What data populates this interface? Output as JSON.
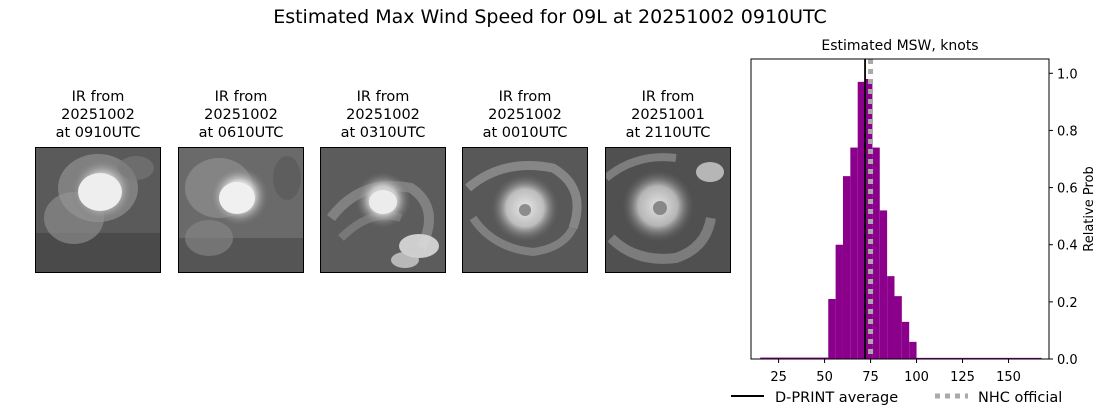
{
  "title": "Estimated Max Wind Speed for 09L at 20251002 0910UTC",
  "ir_panels": [
    {
      "line1": "IR from",
      "line2": "20251002",
      "line3": "at 0910UTC"
    },
    {
      "line1": "IR from",
      "line2": "20251002",
      "line3": "at 0610UTC"
    },
    {
      "line1": "IR from",
      "line2": "20251002",
      "line3": "at 0310UTC"
    },
    {
      "line1": "IR from",
      "line2": "20251002",
      "line3": "at 0010UTC"
    },
    {
      "line1": "IR from",
      "line2": "20251001",
      "line3": "at 2110UTC"
    }
  ],
  "chart_data": {
    "type": "bar",
    "title": "Estimated MSW, knots",
    "xlabel": "",
    "ylabel": "Relative Prob",
    "xlim": [
      10,
      172
    ],
    "ylim": [
      0,
      1.05
    ],
    "x_ticks": [
      25,
      50,
      75,
      100,
      125,
      150
    ],
    "y_ticks": [
      0.0,
      0.2,
      0.4,
      0.6,
      0.8,
      1.0
    ],
    "y_tick_labels": [
      "0.0",
      "0.2",
      "0.4",
      "0.6",
      "0.8",
      "1.0"
    ],
    "y_axis_side": "right",
    "bar_color": "#8b008b",
    "bins": [
      {
        "x0": 15,
        "x1": 52,
        "value": 0.005
      },
      {
        "x0": 52,
        "x1": 56,
        "value": 0.21
      },
      {
        "x0": 56,
        "x1": 60,
        "value": 0.4
      },
      {
        "x0": 60,
        "x1": 64,
        "value": 0.64
      },
      {
        "x0": 64,
        "x1": 68,
        "value": 0.74
      },
      {
        "x0": 68,
        "x1": 72,
        "value": 0.97
      },
      {
        "x0": 72,
        "x1": 76,
        "value": 0.98
      },
      {
        "x0": 76,
        "x1": 80,
        "value": 0.74
      },
      {
        "x0": 80,
        "x1": 84,
        "value": 0.52
      },
      {
        "x0": 84,
        "x1": 88,
        "value": 0.29
      },
      {
        "x0": 88,
        "x1": 92,
        "value": 0.22
      },
      {
        "x0": 92,
        "x1": 96,
        "value": 0.13
      },
      {
        "x0": 96,
        "x1": 100,
        "value": 0.06
      },
      {
        "x0": 100,
        "x1": 168,
        "value": 0.004
      }
    ],
    "dprint_average": 72,
    "nhc_official": 75,
    "legend": [
      {
        "label": "D-PRINT average",
        "style": "solid",
        "color": "#000000"
      },
      {
        "label": "NHC official",
        "style": "dotted",
        "color": "#aaaaaa"
      }
    ],
    "legend_position": "bottom"
  }
}
